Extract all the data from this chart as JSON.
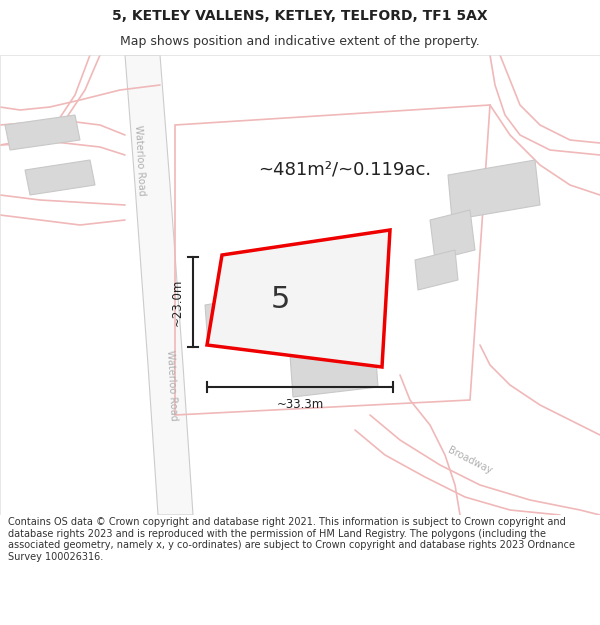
{
  "title_line1": "5, KETLEY VALLENS, KETLEY, TELFORD, TF1 5AX",
  "title_line2": "Map shows position and indicative extent of the property.",
  "footer": "Contains OS data © Crown copyright and database right 2021. This information is subject to Crown copyright and database rights 2023 and is reproduced with the permission of HM Land Registry. The polygons (including the associated geometry, namely x, y co-ordinates) are subject to Crown copyright and database rights 2023 Ordnance Survey 100026316.",
  "area_label": "~481m²/~0.119ac.",
  "dim_width": "~33.3m",
  "dim_height": "~23.0m",
  "property_number": "5",
  "road_color": "#f0b8b8",
  "road_gray_color": "#cccccc",
  "building_color": "#d8d8d8",
  "building_edge": "#c8c8c8",
  "property_fill": "#f2f2f2",
  "property_stroke": "#ee0000",
  "dim_color": "#222222",
  "text_dark": "#222222",
  "text_road": "#b0b0b0",
  "map_bg": "#ffffff",
  "title_fontsize": 10,
  "subtitle_fontsize": 9,
  "footer_fontsize": 7
}
